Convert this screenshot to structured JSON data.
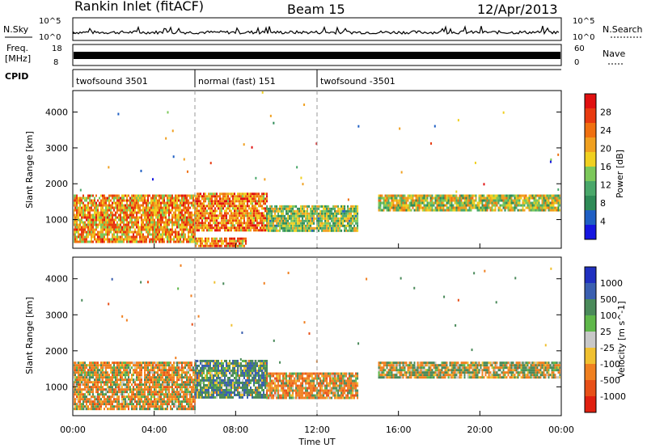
{
  "header": {
    "station": "Rankin Inlet (fitACF)",
    "beam": "Beam 15",
    "date": "12/Apr/2013"
  },
  "noise_panel": {
    "left_label": "N.Sky",
    "right_label": "N.Search",
    "left_ticks": [
      "10^5",
      "10^0"
    ],
    "right_ticks": [
      "10^5",
      "10^0"
    ]
  },
  "freq_panel": {
    "left_label_1": "Freq.",
    "left_label_2": "[MHz]",
    "left_ticks": [
      "18",
      "8"
    ],
    "right_label": "Nave",
    "right_ticks": [
      "60",
      "0"
    ]
  },
  "cpid": {
    "label": "CPID",
    "segments": [
      {
        "name": "twofsound 3501",
        "start_h": 0,
        "end_h": 6
      },
      {
        "name": "normal (fast) 151",
        "start_h": 6,
        "end_h": 12
      },
      {
        "name": "twofsound -3501",
        "start_h": 12,
        "end_h": 24
      }
    ]
  },
  "chart_data": [
    {
      "type": "heatmap",
      "title": "Power",
      "ylabel": "Slant Range [km]",
      "xlim_hours": [
        0,
        24
      ],
      "ylim_km": [
        200,
        4600
      ],
      "yticks": [
        1000,
        2000,
        3000,
        4000
      ],
      "colorbar": {
        "label": "Power [dB]",
        "range": [
          0,
          32
        ],
        "tick_values": [
          4,
          8,
          12,
          16,
          20,
          24,
          28
        ],
        "tick_labels": [
          "4",
          "8",
          "12",
          "16",
          "20",
          "24",
          "28"
        ],
        "colors": [
          "#1616e0",
          "#1f5fc4",
          "#2e8b57",
          "#4aa86a",
          "#7cc85a",
          "#f0d020",
          "#f0a020",
          "#f07010",
          "#e83a10",
          "#e01010"
        ]
      },
      "echo_regions": [
        {
          "t0": 0.0,
          "t1": 6.0,
          "r0": 400,
          "r1": 1700,
          "level": 22
        },
        {
          "t0": 6.0,
          "t1": 9.5,
          "r0": 700,
          "r1": 1750,
          "level": 24
        },
        {
          "t0": 9.5,
          "t1": 14.0,
          "r0": 700,
          "r1": 1400,
          "level": 14
        },
        {
          "t0": 6.0,
          "t1": 8.5,
          "r0": 250,
          "r1": 500,
          "level": 24
        },
        {
          "t0": 15.0,
          "t1": 24.0,
          "r0": 1250,
          "r1": 1700,
          "level": 16
        }
      ]
    },
    {
      "type": "heatmap",
      "title": "Velocity",
      "ylabel": "Slant Range [km]",
      "xlabel": "Time UT",
      "xlim_hours": [
        0,
        24
      ],
      "ylim_km": [
        200,
        4600
      ],
      "yticks": [
        1000,
        2000,
        3000,
        4000
      ],
      "xtick_labels": [
        "00:00",
        "04:00",
        "08:00",
        "12:00",
        "16:00",
        "20:00",
        "00:00"
      ],
      "colorbar": {
        "label": "Velocity [m s^-1]",
        "tick_labels": [
          "1000",
          "500",
          "100",
          "25",
          "-25",
          "-100",
          "-500",
          "-1000"
        ],
        "colors": [
          "#2030c0",
          "#3a5fb0",
          "#4a8a5a",
          "#5fb84a",
          "#c8c8c8",
          "#f0c030",
          "#f08020",
          "#e85018",
          "#e02010"
        ]
      },
      "echo_regions": [
        {
          "t0": 0.0,
          "t1": 6.0,
          "r0": 400,
          "r1": 1700,
          "vel": -150
        },
        {
          "t0": 6.0,
          "t1": 9.5,
          "r0": 700,
          "r1": 1750,
          "vel": 300
        },
        {
          "t0": 9.5,
          "t1": 14.0,
          "r0": 700,
          "r1": 1400,
          "vel": -200
        },
        {
          "t0": 15.0,
          "t1": 24.0,
          "r0": 1250,
          "r1": 1700,
          "vel": 0
        }
      ]
    }
  ]
}
